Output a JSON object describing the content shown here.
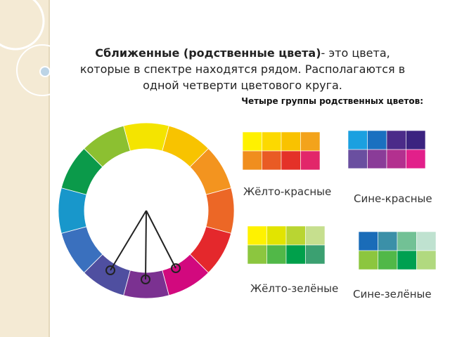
{
  "slide": {
    "title_bold": "Сближенные (родственные цвета)",
    "title_rest": "- это цвета, которые в спектре находятся рядом. Располагаются в одной четверти цветового круга.",
    "subtitle": "Четыре группы родственных цветов:",
    "wheel_colors": [
      "#f4e400",
      "#f8c300",
      "#f3941f",
      "#ec6726",
      "#e4282c",
      "#d2097e",
      "#7b3191",
      "#4f4fa0",
      "#3a70be",
      "#1897cb",
      "#0b9a4a",
      "#8cc031"
    ],
    "groups": [
      {
        "label": "Жёлто-красные",
        "colors": [
          "#fff100",
          "#fcd900",
          "#f9c200",
          "#f3a31b",
          "#f08e1e",
          "#e95b24",
          "#e43128",
          "#e2266a"
        ]
      },
      {
        "label": "Сине-красные",
        "colors": [
          "#1ba0e0",
          "#1a70c0",
          "#4b2b89",
          "#3b2380",
          "#6a4fa0",
          "#8a3c98",
          "#b3308f",
          "#e2208a"
        ]
      },
      {
        "label": "Жёлто-зелёные",
        "colors": [
          "#fff200",
          "#e2e400",
          "#b9d532",
          "#c6df8e",
          "#8cc63f",
          "#51b848",
          "#00a04b",
          "#3ba071"
        ]
      },
      {
        "label": "Сине-зелёные",
        "colors": [
          "#1a6cb8",
          "#3b90a8",
          "#72c195",
          "#bfe2d0",
          "#8cc63f",
          "#51b848",
          "#00a051",
          "#b1d97f"
        ]
      }
    ]
  }
}
